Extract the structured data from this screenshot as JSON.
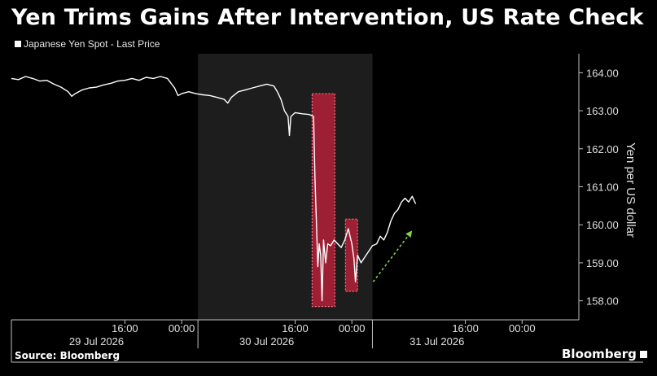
{
  "title": "Yen Trims Gains After Intervention, US Rate Check",
  "legend": {
    "label": "Japanese Yen Spot - Last Price"
  },
  "source": "Source: Bloomberg",
  "brand": "Bloomberg",
  "colors": {
    "background": "#000000",
    "shaded_period": "#1d1d1d",
    "series": "#ffffff",
    "highlight_fill": "#c0203a",
    "highlight_stroke": "#ff6f85",
    "arrow": "#7fd04a"
  },
  "chart_data": {
    "type": "line",
    "ylabel": "Yen per US dollar",
    "ylim": [
      157.5,
      164.5
    ],
    "y_ticks": [
      "158.00",
      "159.00",
      "160.00",
      "161.00",
      "162.00",
      "163.00",
      "164.00"
    ],
    "x_range_hours": [
      0,
      80
    ],
    "x_time_ticks": [
      {
        "hour": 16,
        "label": "16:00"
      },
      {
        "hour": 24,
        "label": "00:00"
      },
      {
        "hour": 40,
        "label": "16:00"
      },
      {
        "hour": 48,
        "label": "00:00"
      },
      {
        "hour": 64,
        "label": "16:00"
      },
      {
        "hour": 72,
        "label": "00:00"
      }
    ],
    "x_date_labels": [
      {
        "hour": 12,
        "label": "29 Jul 2026"
      },
      {
        "hour": 36,
        "label": "30 Jul 2026"
      },
      {
        "hour": 60,
        "label": "31 Jul 2026"
      }
    ],
    "date_boundaries": [
      26.3,
      50.9
    ],
    "shaded_period_hours": [
      26.3,
      50.9
    ],
    "series": [
      {
        "name": "Japanese Yen Spot - Last Price",
        "points": [
          [
            0,
            163.85
          ],
          [
            1,
            163.82
          ],
          [
            2,
            163.9
          ],
          [
            3,
            163.85
          ],
          [
            4,
            163.78
          ],
          [
            5,
            163.8
          ],
          [
            6,
            163.7
          ],
          [
            7,
            163.62
          ],
          [
            8,
            163.5
          ],
          [
            8.5,
            163.38
          ],
          [
            9,
            163.45
          ],
          [
            10,
            163.55
          ],
          [
            11,
            163.6
          ],
          [
            12,
            163.62
          ],
          [
            13,
            163.68
          ],
          [
            14,
            163.72
          ],
          [
            15,
            163.78
          ],
          [
            16,
            163.8
          ],
          [
            17,
            163.85
          ],
          [
            18,
            163.8
          ],
          [
            19,
            163.88
          ],
          [
            20,
            163.85
          ],
          [
            21,
            163.9
          ],
          [
            22,
            163.85
          ],
          [
            23,
            163.6
          ],
          [
            23.5,
            163.4
          ],
          [
            24,
            163.45
          ],
          [
            25,
            163.5
          ],
          [
            26,
            163.45
          ],
          [
            27,
            163.42
          ],
          [
            28,
            163.4
          ],
          [
            29,
            163.35
          ],
          [
            30,
            163.3
          ],
          [
            30.5,
            163.2
          ],
          [
            31,
            163.35
          ],
          [
            32,
            163.5
          ],
          [
            33,
            163.55
          ],
          [
            34,
            163.6
          ],
          [
            35,
            163.65
          ],
          [
            36,
            163.7
          ],
          [
            37,
            163.65
          ],
          [
            37.5,
            163.5
          ],
          [
            38,
            163.3
          ],
          [
            38.5,
            163.0
          ],
          [
            39,
            162.85
          ],
          [
            39.2,
            162.35
          ],
          [
            39.4,
            162.85
          ],
          [
            40,
            162.95
          ],
          [
            41,
            162.92
          ],
          [
            42,
            162.9
          ],
          [
            42.6,
            162.85
          ],
          [
            42.8,
            161.2
          ],
          [
            43,
            160.1
          ],
          [
            43.2,
            158.9
          ],
          [
            43.4,
            159.5
          ],
          [
            43.6,
            159.2
          ],
          [
            43.8,
            158.0
          ],
          [
            44,
            159.6
          ],
          [
            44.3,
            159.0
          ],
          [
            44.6,
            159.5
          ],
          [
            45,
            159.45
          ],
          [
            45.5,
            159.6
          ],
          [
            46,
            159.5
          ],
          [
            46.5,
            159.4
          ],
          [
            47,
            159.6
          ],
          [
            47.5,
            159.9
          ],
          [
            48,
            159.5
          ],
          [
            48.3,
            159.1
          ],
          [
            48.5,
            158.5
          ],
          [
            48.8,
            159.2
          ],
          [
            49.3,
            159.0
          ],
          [
            50,
            159.2
          ],
          [
            50.9,
            159.45
          ],
          [
            51.5,
            159.5
          ],
          [
            52,
            159.7
          ],
          [
            52.5,
            159.6
          ],
          [
            53,
            159.8
          ],
          [
            53.5,
            160.1
          ],
          [
            54,
            160.3
          ],
          [
            54.5,
            160.4
          ],
          [
            55,
            160.6
          ],
          [
            55.5,
            160.7
          ],
          [
            56,
            160.6
          ],
          [
            56.5,
            160.75
          ],
          [
            57,
            160.55
          ]
        ]
      }
    ],
    "highlight_boxes": [
      {
        "x": [
          42.4,
          45.6
        ],
        "y": [
          157.85,
          163.45
        ]
      },
      {
        "x": [
          47.1,
          48.8
        ],
        "y": [
          158.25,
          160.15
        ]
      }
    ],
    "arrow": {
      "from": [
        51,
        158.5
      ],
      "to": [
        56.5,
        159.85
      ]
    }
  }
}
